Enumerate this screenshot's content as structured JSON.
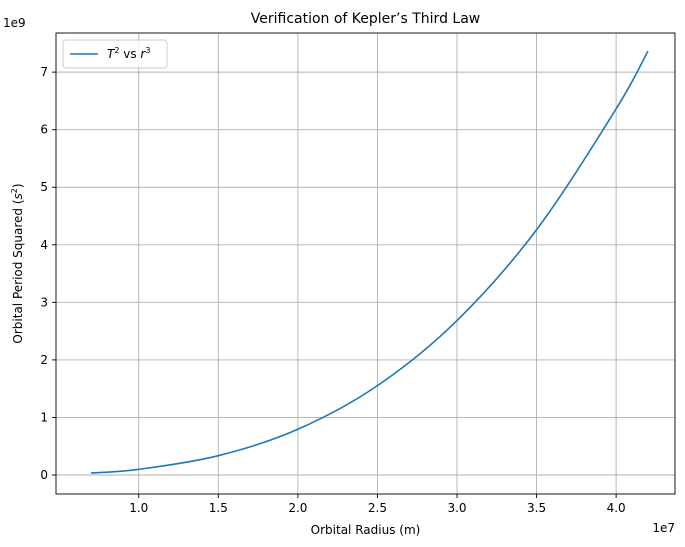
{
  "chart_data": {
    "type": "line",
    "title": "Verification of Kepler’s Third Law",
    "xlabel": "Orbital Radius (m)",
    "ylabel": "Orbital Period Squared (",
    "ylabel_var": "s",
    "ylabel_sup": "2",
    "ylabel_end": ")",
    "x_multiplier": "1e7",
    "y_multiplier": "1e9",
    "xlim": [
      0.48,
      4.37
    ],
    "ylim": [
      -0.33,
      7.68
    ],
    "x_ticks": [
      1.0,
      1.5,
      2.0,
      2.5,
      3.0,
      3.5,
      4.0
    ],
    "x_tick_labels": [
      "1.0",
      "1.5",
      "2.0",
      "2.5",
      "3.0",
      "3.5",
      "4.0"
    ],
    "y_ticks": [
      0,
      1,
      2,
      3,
      4,
      5,
      6,
      7
    ],
    "y_tick_labels": [
      "0",
      "1",
      "2",
      "3",
      "4",
      "5",
      "6",
      "7"
    ],
    "grid": true,
    "legend_position": "upper-left",
    "line_color": "#1f77b4",
    "grid_color": "#b0b0b0",
    "series": [
      {
        "name_var1": "T",
        "name_sup1": "2",
        "name_mid": " vs ",
        "name_var2": "r",
        "name_sup2": "3",
        "x": [
          0.7,
          1.0,
          1.5,
          2.0,
          2.5,
          3.0,
          3.5,
          4.0,
          4.2
        ],
        "y": [
          0.034,
          0.099,
          0.336,
          0.795,
          1.553,
          2.684,
          4.262,
          6.362,
          7.365
        ]
      }
    ]
  }
}
